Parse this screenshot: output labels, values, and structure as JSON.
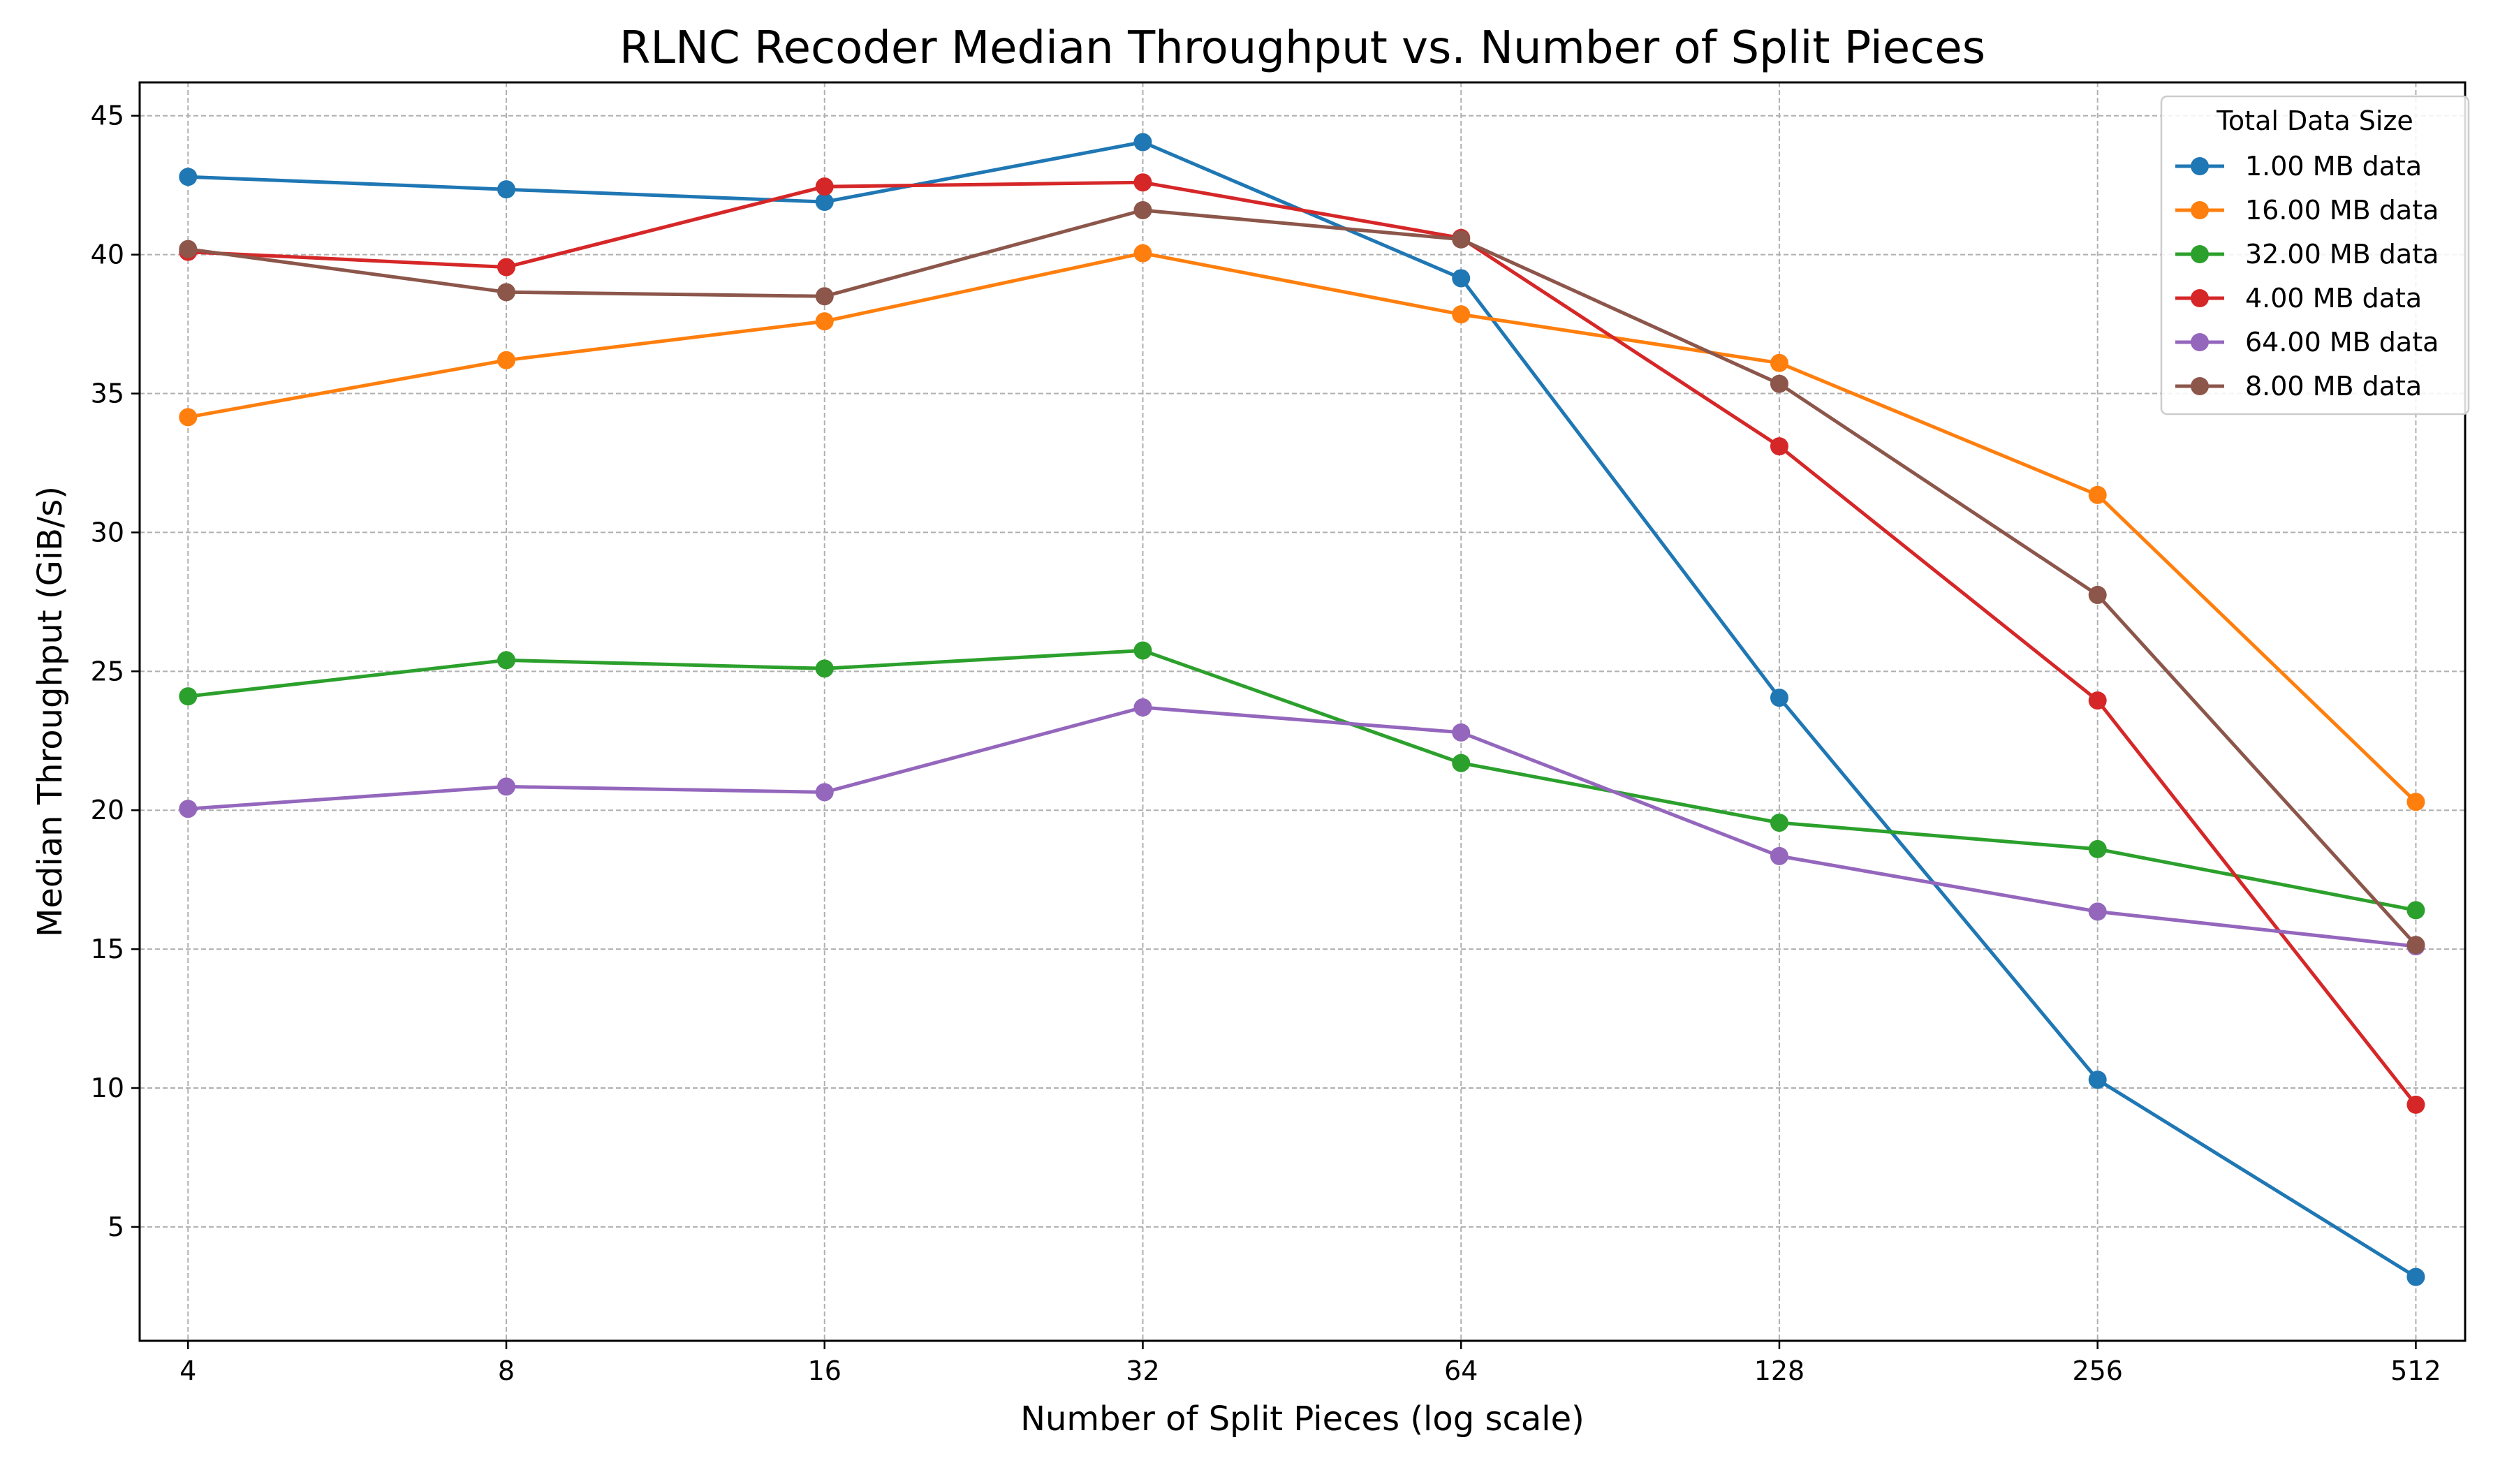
{
  "chart_data": {
    "type": "line",
    "title": "RLNC Recoder Median Throughput vs. Number of Split Pieces",
    "xlabel": "Number of Split Pieces (log scale)",
    "ylabel": "Median Throughput (GiB/s)",
    "x_scale": "log2",
    "x": [
      4,
      8,
      16,
      32,
      64,
      128,
      256,
      512
    ],
    "x_tick_labels": [
      "4",
      "8",
      "16",
      "32",
      "64",
      "128",
      "256",
      "512"
    ],
    "xlim": [
      3.6,
      570
    ],
    "ylim": [
      0.9,
      46.2
    ],
    "y_ticks": [
      5,
      10,
      15,
      20,
      25,
      30,
      35,
      40,
      45
    ],
    "y_tick_labels": [
      "5",
      "10",
      "15",
      "20",
      "25",
      "30",
      "35",
      "40",
      "45"
    ],
    "grid": true,
    "legend": {
      "title": "Total Data Size",
      "placement": "top-right"
    },
    "series": [
      {
        "name": "1.00 MB data",
        "color": "#1f77b4",
        "values": [
          42.8,
          42.35,
          41.9,
          44.05,
          39.15,
          24.05,
          10.3,
          3.2
        ]
      },
      {
        "name": "16.00 MB data",
        "color": "#ff7f0e",
        "values": [
          34.15,
          36.2,
          37.6,
          40.05,
          37.85,
          36.1,
          31.35,
          20.3
        ]
      },
      {
        "name": "32.00 MB data",
        "color": "#2ca02c",
        "values": [
          24.1,
          25.4,
          25.1,
          25.75,
          21.7,
          19.55,
          18.6,
          16.4
        ]
      },
      {
        "name": "4.00 MB data",
        "color": "#d62728",
        "values": [
          40.1,
          39.55,
          42.45,
          42.6,
          40.6,
          33.1,
          23.95,
          9.4
        ]
      },
      {
        "name": "64.00 MB data",
        "color": "#9467bd",
        "values": [
          20.05,
          20.85,
          20.65,
          23.7,
          22.8,
          18.35,
          16.35,
          15.1
        ]
      },
      {
        "name": "8.00 MB data",
        "color": "#8c564b",
        "values": [
          40.2,
          38.65,
          38.5,
          41.6,
          40.55,
          35.35,
          27.75,
          15.15
        ]
      }
    ]
  }
}
